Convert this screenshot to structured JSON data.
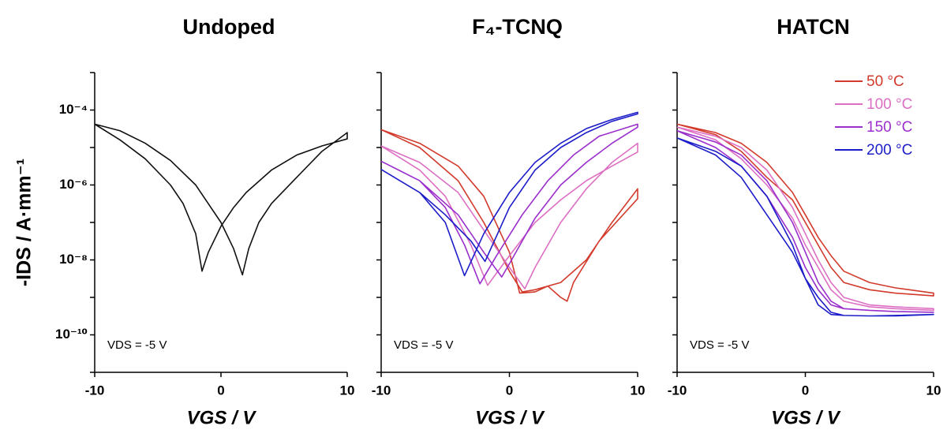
{
  "chart_data": [
    {
      "type": "line",
      "title": "Undoped",
      "xlabel": "VGS / V",
      "ylabel": "-IDS / A·mm⁻¹",
      "annotation": "VDS = -5 V",
      "log_y": true,
      "xlim": [
        -10,
        10
      ],
      "ylim": [
        1e-11,
        0.001
      ],
      "xticks": [
        -10,
        0,
        10
      ],
      "yticks": [
        {
          "value": 0.0001,
          "label": "10⁻⁴"
        },
        {
          "value": 1e-06,
          "label": "10⁻⁶"
        },
        {
          "value": 1e-08,
          "label": "10⁻⁸"
        },
        {
          "value": 1e-10,
          "label": "10⁻¹⁰"
        }
      ],
      "ytick_marks": [
        0.001,
        0.0001,
        1e-05,
        1e-06,
        1e-07,
        1e-08,
        1e-09,
        1e-10,
        1e-11
      ],
      "series": [
        {
          "color": "#111111",
          "x": [
            -10,
            -8,
            -6,
            -4,
            -3,
            -2,
            -1.5,
            -1,
            0,
            1,
            2,
            4,
            6,
            8,
            10,
            10,
            8,
            6,
            4,
            3,
            2.2,
            1.7,
            1,
            0,
            -2,
            -4,
            -6,
            -8,
            -10
          ],
          "values": [
            4.2e-05,
            1.6e-05,
            5e-06,
            1e-06,
            3.2e-07,
            5e-08,
            5e-09,
            1.6e-08,
            7.9e-08,
            2.5e-07,
            6.3e-07,
            2.5e-06,
            6.3e-06,
            1.1e-05,
            1.7e-05,
            2.5e-05,
            7.9e-06,
            1.6e-06,
            3.2e-07,
            1e-07,
            2e-08,
            4e-09,
            2e-08,
            1e-07,
            1e-06,
            4.5e-06,
            1.3e-05,
            2.8e-05,
            4.2e-05
          ]
        }
      ]
    },
    {
      "type": "line",
      "title": "F₄-TCNQ",
      "xlabel": "VGS / V",
      "annotation": "VDS = -5 V",
      "log_y": true,
      "xlim": [
        -10,
        10
      ],
      "ylim": [
        1e-11,
        0.001
      ],
      "xticks": [
        -10,
        0,
        10
      ],
      "ytick_marks": [
        0.001,
        0.0001,
        1e-05,
        1e-06,
        1e-07,
        1e-08,
        1e-09,
        1e-10,
        1e-11
      ],
      "series": [
        {
          "color": "#d23a2c",
          "x": [
            -10,
            -7,
            -4,
            -2,
            0,
            0.8,
            2,
            3,
            4,
            4.5,
            5,
            7,
            10,
            10,
            8,
            6,
            4,
            2,
            1,
            0,
            -2,
            -4,
            -7,
            -10
          ],
          "values": [
            3e-05,
            1.3e-05,
            3.2e-06,
            5e-07,
            1.6e-08,
            1.3e-09,
            1.4e-09,
            2e-09,
            1e-09,
            7.9e-10,
            2.5e-09,
            3.2e-08,
            4.3e-07,
            7.9e-07,
            1e-07,
            1e-08,
            2.5e-09,
            1.6e-09,
            1.4e-09,
            5e-09,
            1e-07,
            1.3e-06,
            1e-05,
            3e-05
          ]
        },
        {
          "color": "#dc6fc3",
          "x": [
            -10,
            -7,
            -5,
            -3,
            -1.7,
            0,
            2,
            4,
            6,
            8,
            10,
            10,
            8,
            6,
            4,
            2,
            1.2,
            0,
            -2,
            -4,
            -7,
            -10
          ],
          "values": [
            1.1e-05,
            2.5e-06,
            5e-07,
            2.5e-08,
            2.1e-09,
            1.3e-08,
            1e-07,
            4e-07,
            1.3e-06,
            3.2e-06,
            7.6e-06,
            1.3e-05,
            4e-06,
            7.9e-07,
            1e-07,
            6.3e-09,
            1.7e-09,
            6.3e-09,
            6.3e-08,
            6.3e-07,
            4e-06,
            1.1e-05
          ]
        },
        {
          "color": "#9a2fcc",
          "x": [
            -10,
            -7,
            -5,
            -3.5,
            -2.3,
            -1,
            1,
            3,
            5,
            7,
            10,
            10,
            8,
            6,
            4,
            2,
            0,
            -0.6,
            -2,
            -4,
            -7,
            -10
          ],
          "values": [
            4.3e-06,
            1.3e-06,
            2.5e-07,
            2.5e-08,
            2.3e-09,
            1.3e-08,
            1.6e-07,
            1.3e-06,
            6.3e-06,
            2e-05,
            4.2e-05,
            3.5e-05,
            1.3e-05,
            4e-06,
            1e-06,
            1.3e-07,
            7.9e-09,
            3.5e-09,
            1.6e-08,
            1.6e-07,
            1.3e-06,
            4.3e-06
          ]
        },
        {
          "color": "#1c1cc8",
          "x": [
            -10,
            -7,
            -5,
            -3.5,
            -2,
            0,
            2,
            4,
            6,
            8,
            10,
            10,
            8,
            6,
            4,
            2,
            0,
            -1.9,
            -3,
            -5,
            -7,
            -10
          ],
          "values": [
            2.6e-06,
            6.3e-07,
            1e-07,
            3.8e-09,
            5e-08,
            6.3e-07,
            4e-06,
            1.3e-05,
            3.2e-05,
            5.6e-05,
            8.7e-05,
            7.9e-05,
            5e-05,
            2.5e-05,
            1e-05,
            2.5e-06,
            2.5e-07,
            9.1e-09,
            3.2e-08,
            1.6e-07,
            6.3e-07,
            2.6e-06
          ]
        }
      ]
    },
    {
      "type": "line",
      "title": "HATCN",
      "xlabel": "VGS / V",
      "annotation": "VDS = -5 V",
      "legend": "upper right",
      "log_y": true,
      "xlim": [
        -10,
        10
      ],
      "ylim": [
        1e-11,
        0.001
      ],
      "xticks": [
        -10,
        0,
        10
      ],
      "ytick_marks": [
        0.001,
        0.0001,
        1e-05,
        1e-06,
        1e-07,
        1e-08,
        1e-09,
        1e-10,
        1e-11
      ],
      "series": [
        {
          "name": "50 °C",
          "color": "#d23a2c",
          "x": [
            -10,
            -7,
            -5,
            -3,
            -1,
            0,
            1,
            2,
            3,
            5,
            7,
            10,
            10,
            7,
            5,
            3,
            2,
            1,
            0,
            -1,
            -3,
            -5,
            -7,
            -10
          ],
          "values": [
            4.2e-05,
            2.5e-05,
            1.3e-05,
            4e-06,
            6.3e-07,
            1.6e-07,
            4e-08,
            1.3e-08,
            5e-09,
            2.5e-09,
            1.8e-09,
            1.3e-09,
            1.1e-09,
            1.3e-09,
            1.6e-09,
            2.5e-09,
            6.3e-09,
            2.5e-08,
            1e-07,
            4e-07,
            1.6e-06,
            7.9e-06,
            2.2e-05,
            4.2e-05
          ]
        },
        {
          "name": "100 °C",
          "color": "#dc6fc3",
          "x": [
            -10,
            -7,
            -5,
            -3,
            -1,
            0,
            1,
            2,
            3,
            5,
            7,
            10,
            10,
            7,
            5,
            3,
            2,
            1,
            0,
            -1,
            -3,
            -5,
            -7,
            -10
          ],
          "values": [
            3.5e-05,
            2e-05,
            1e-05,
            2.5e-06,
            2.5e-07,
            5e-08,
            1e-08,
            2.5e-09,
            1e-09,
            6.3e-10,
            5.6e-10,
            5e-10,
            4.5e-10,
            5e-10,
            5.6e-10,
            7.9e-10,
            1.6e-09,
            6.3e-09,
            2.5e-08,
            1.3e-07,
            1e-06,
            5e-06,
            1.6e-05,
            3.5e-05
          ]
        },
        {
          "name": "150 °C",
          "color": "#9a2fcc",
          "x": [
            -10,
            -7,
            -5,
            -3,
            -1,
            0,
            1,
            2,
            3,
            5,
            7,
            10,
            10,
            7,
            5,
            3,
            2,
            1,
            0,
            -1,
            -3,
            -5,
            -7,
            -10
          ],
          "values": [
            2.8e-05,
            1.4e-05,
            6.3e-06,
            1.3e-06,
            1e-07,
            1.6e-08,
            2.5e-09,
            7.9e-10,
            5e-10,
            4.5e-10,
            4.2e-10,
            4e-10,
            4e-10,
            4.2e-10,
            4.5e-10,
            5e-10,
            6.3e-10,
            1.6e-09,
            6.3e-09,
            4e-08,
            5e-07,
            3.2e-06,
            1e-05,
            2.8e-05
          ]
        },
        {
          "name": "200 °C",
          "color": "#1c1cc8",
          "x": [
            -10,
            -7,
            -5,
            -3,
            -1,
            0,
            1,
            2,
            3,
            5,
            7,
            10,
            10,
            7,
            5,
            3,
            2,
            1,
            0,
            -1,
            -3,
            -5,
            -7,
            -10
          ],
          "values": [
            1.8e-05,
            7.9e-06,
            3.2e-06,
            5e-07,
            2.5e-08,
            3.2e-09,
            6.3e-10,
            3.5e-10,
            3.3e-10,
            3.2e-10,
            3.2e-10,
            3.5e-10,
            3.5e-10,
            3.3e-10,
            3.2e-10,
            3.3e-10,
            4e-10,
            1e-09,
            3.2e-09,
            1.6e-08,
            1.6e-07,
            1.6e-06,
            6.3e-06,
            1.8e-05
          ]
        }
      ]
    }
  ]
}
